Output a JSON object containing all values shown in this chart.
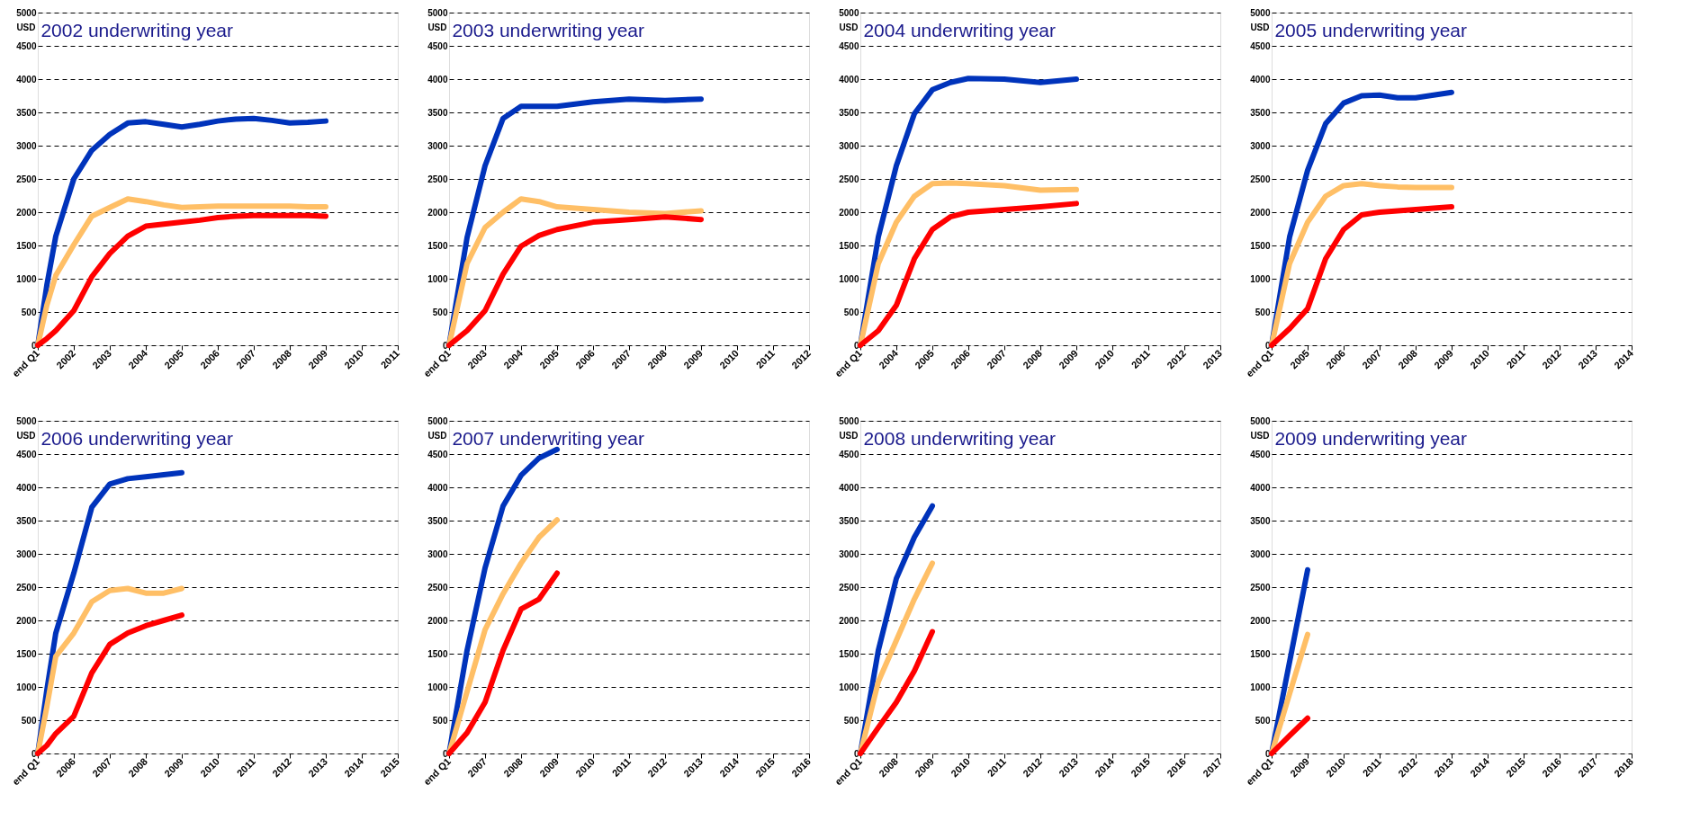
{
  "chart_data": [
    {
      "type": "line",
      "title": "2002 underwriting year",
      "ylabel": "USD",
      "x": [
        2001,
        2001.25,
        2001.5,
        2002,
        2002.5,
        2003,
        2003.5,
        2004,
        2004.5,
        2005,
        2005.5,
        2006,
        2006.5,
        2007,
        2007.5,
        2008,
        2008.5,
        2009
      ],
      "xlim": [
        2001,
        2011
      ],
      "ylim": [
        0,
        5000
      ],
      "grid": "y",
      "line_style": "solid",
      "marker": "none",
      "xticks": [
        {
          "value": 2001,
          "label": "end Q1"
        },
        2002,
        2003,
        2004,
        2005,
        2006,
        2007,
        2008,
        2009,
        2010,
        2011
      ],
      "yticks": [
        0,
        500,
        1000,
        1500,
        2000,
        2500,
        3000,
        3500,
        4000,
        4500,
        5000
      ],
      "series": [
        {
          "color": "#0033bb",
          "values": [
            0,
            900,
            1640,
            2500,
            2930,
            3170,
            3340,
            3360,
            3320,
            3280,
            3320,
            3370,
            3400,
            3410,
            3380,
            3340,
            3350,
            3370
          ]
        },
        {
          "color": "#ffbf66",
          "values": [
            0,
            600,
            1050,
            1510,
            1940,
            2070,
            2200,
            2160,
            2110,
            2070,
            2080,
            2090,
            2090,
            2090,
            2090,
            2090,
            2080,
            2080
          ]
        },
        {
          "color": "#ff0000",
          "values": [
            0,
            100,
            220,
            520,
            1030,
            1380,
            1640,
            1790,
            1820,
            1850,
            1880,
            1920,
            1940,
            1950,
            1950,
            1950,
            1950,
            1940
          ]
        }
      ]
    },
    {
      "type": "line",
      "title": "2003 underwriting year",
      "ylabel": "USD",
      "x": [
        2002,
        2002.5,
        2003,
        2003.5,
        2004,
        2004.5,
        2005,
        2006,
        2007,
        2008,
        2009
      ],
      "xlim": [
        2002,
        2012
      ],
      "ylim": [
        0,
        5000
      ],
      "grid": "y",
      "line_style": "solid",
      "marker": "none",
      "xticks": [
        {
          "value": 2002,
          "label": "end Q1"
        },
        2003,
        2004,
        2005,
        2006,
        2007,
        2008,
        2009,
        2010,
        2011,
        2012
      ],
      "yticks": [
        0,
        500,
        1000,
        1500,
        2000,
        2500,
        3000,
        3500,
        4000,
        4500,
        5000
      ],
      "series": [
        {
          "color": "#0033bb",
          "values": [
            0,
            1620,
            2700,
            3410,
            3590,
            3590,
            3590,
            3660,
            3700,
            3680,
            3700
          ]
        },
        {
          "color": "#ffbf66",
          "values": [
            0,
            1230,
            1770,
            2000,
            2200,
            2160,
            2080,
            2040,
            2000,
            1980,
            2020
          ]
        },
        {
          "color": "#ff0000",
          "values": [
            0,
            220,
            520,
            1070,
            1490,
            1650,
            1740,
            1850,
            1890,
            1930,
            1890
          ]
        }
      ]
    },
    {
      "type": "line",
      "title": "2004 underwriting year",
      "ylabel": "USD",
      "x": [
        2003,
        2003.5,
        2004,
        2004.5,
        2005,
        2005.5,
        2006,
        2007,
        2008,
        2009
      ],
      "xlim": [
        2003,
        2013
      ],
      "ylim": [
        0,
        5000
      ],
      "grid": "y",
      "line_style": "solid",
      "marker": "none",
      "xticks": [
        {
          "value": 2003,
          "label": "end Q1"
        },
        2004,
        2005,
        2006,
        2007,
        2008,
        2009,
        2010,
        2011,
        2012,
        2013
      ],
      "yticks": [
        0,
        500,
        1000,
        1500,
        2000,
        2500,
        3000,
        3500,
        4000,
        4500,
        5000
      ],
      "series": [
        {
          "color": "#0033bb",
          "values": [
            0,
            1630,
            2700,
            3480,
            3840,
            3950,
            4010,
            4000,
            3950,
            4000
          ]
        },
        {
          "color": "#ffbf66",
          "values": [
            0,
            1230,
            1850,
            2240,
            2430,
            2440,
            2430,
            2400,
            2330,
            2340
          ]
        },
        {
          "color": "#ff0000",
          "values": [
            0,
            220,
            600,
            1300,
            1740,
            1930,
            2000,
            2040,
            2080,
            2130
          ]
        }
      ]
    },
    {
      "type": "line",
      "title": "2005 underwriting year",
      "ylabel": "USD",
      "x": [
        2004,
        2004.5,
        2005,
        2005.5,
        2006,
        2006.5,
        2007,
        2007.5,
        2008,
        2009
      ],
      "xlim": [
        2004,
        2014
      ],
      "ylim": [
        0,
        5000
      ],
      "grid": "y",
      "line_style": "solid",
      "marker": "none",
      "xticks": [
        {
          "value": 2004,
          "label": "end Q1"
        },
        2005,
        2006,
        2007,
        2008,
        2009,
        2010,
        2011,
        2012,
        2013,
        2014
      ],
      "yticks": [
        0,
        500,
        1000,
        1500,
        2000,
        2500,
        3000,
        3500,
        4000,
        4500,
        5000
      ],
      "series": [
        {
          "color": "#0033bb",
          "values": [
            0,
            1630,
            2630,
            3330,
            3640,
            3750,
            3760,
            3720,
            3720,
            3800
          ]
        },
        {
          "color": "#ffbf66",
          "values": [
            0,
            1230,
            1850,
            2240,
            2400,
            2430,
            2400,
            2380,
            2370,
            2370
          ]
        },
        {
          "color": "#ff0000",
          "values": [
            0,
            250,
            550,
            1300,
            1740,
            1960,
            2000,
            2020,
            2040,
            2080
          ]
        }
      ]
    },
    {
      "type": "line",
      "title": "2006 underwriting year",
      "ylabel": "USD",
      "x": [
        2005,
        2005.25,
        2005.5,
        2006,
        2006.5,
        2007,
        2007.5,
        2008,
        2008.5,
        2009
      ],
      "xlim": [
        2005,
        2015
      ],
      "ylim": [
        0,
        5000
      ],
      "grid": "y",
      "line_style": "solid",
      "marker": "none",
      "xticks": [
        {
          "value": 2005,
          "label": "end Q1"
        },
        2006,
        2007,
        2008,
        2009,
        2010,
        2011,
        2012,
        2013,
        2014,
        2015
      ],
      "yticks": [
        0,
        500,
        1000,
        1500,
        2000,
        2500,
        3000,
        3500,
        4000,
        4500,
        5000
      ],
      "series": [
        {
          "color": "#0033bb",
          "values": [
            0,
            950,
            1810,
            2710,
            3700,
            4050,
            4130,
            4160,
            4190,
            4220
          ]
        },
        {
          "color": "#ffbf66",
          "values": [
            0,
            700,
            1460,
            1810,
            2280,
            2450,
            2480,
            2410,
            2410,
            2480
          ]
        },
        {
          "color": "#ff0000",
          "values": [
            0,
            120,
            300,
            560,
            1210,
            1640,
            1810,
            1920,
            2000,
            2080
          ]
        }
      ]
    },
    {
      "type": "line",
      "title": "2007 underwriting year",
      "ylabel": "USD",
      "x": [
        2006,
        2006.5,
        2007,
        2007.5,
        2008,
        2008.5,
        2009
      ],
      "xlim": [
        2006,
        2016
      ],
      "ylim": [
        0,
        5000
      ],
      "grid": "y",
      "line_style": "solid",
      "marker": "none",
      "xticks": [
        {
          "value": 2006,
          "label": "end Q1"
        },
        2007,
        2008,
        2009,
        2010,
        2011,
        2012,
        2013,
        2014,
        2015,
        2016
      ],
      "yticks": [
        0,
        500,
        1000,
        1500,
        2000,
        2500,
        3000,
        3500,
        4000,
        4500,
        5000
      ],
      "series": [
        {
          "color": "#0033bb",
          "values": [
            0,
            1550,
            2790,
            3720,
            4180,
            4440,
            4570
          ]
        },
        {
          "color": "#ffbf66",
          "values": [
            0,
            930,
            1860,
            2400,
            2860,
            3250,
            3510
          ]
        },
        {
          "color": "#ff0000",
          "values": [
            0,
            310,
            770,
            1550,
            2170,
            2320,
            2710
          ]
        }
      ]
    },
    {
      "type": "line",
      "title": "2008 underwriting year",
      "ylabel": "USD",
      "x": [
        2007,
        2007.5,
        2008,
        2008.5,
        2009
      ],
      "xlim": [
        2007,
        2017
      ],
      "ylim": [
        0,
        5000
      ],
      "grid": "y",
      "line_style": "solid",
      "marker": "none",
      "xticks": [
        {
          "value": 2007,
          "label": "end Q1"
        },
        2008,
        2009,
        2010,
        2011,
        2012,
        2013,
        2014,
        2015,
        2016,
        2017
      ],
      "yticks": [
        0,
        500,
        1000,
        1500,
        2000,
        2500,
        3000,
        3500,
        4000,
        4500,
        5000
      ],
      "series": [
        {
          "color": "#0033bb",
          "values": [
            0,
            1550,
            2630,
            3250,
            3720
          ]
        },
        {
          "color": "#ffbf66",
          "values": [
            0,
            1080,
            1700,
            2320,
            2860
          ]
        },
        {
          "color": "#ff0000",
          "values": [
            0,
            390,
            770,
            1240,
            1830
          ]
        }
      ]
    },
    {
      "type": "line",
      "title": "2009 underwriting year",
      "ylabel": "USD",
      "x": [
        2008,
        2008.5,
        2009
      ],
      "xlim": [
        2008,
        2018
      ],
      "ylim": [
        0,
        5000
      ],
      "grid": "y",
      "line_style": "solid",
      "marker": "none",
      "xticks": [
        {
          "value": 2008,
          "label": "end Q1"
        },
        2009,
        2010,
        2011,
        2012,
        2013,
        2014,
        2015,
        2016,
        2017,
        2018
      ],
      "yticks": [
        0,
        500,
        1000,
        1500,
        2000,
        2500,
        3000,
        3500,
        4000,
        4500,
        5000
      ],
      "series": [
        {
          "color": "#0033bb",
          "values": [
            0,
            1380,
            2760
          ]
        },
        {
          "color": "#ffbf66",
          "values": [
            0,
            900,
            1790
          ]
        },
        {
          "color": "#ff0000",
          "values": [
            0,
            270,
            530
          ]
        }
      ]
    }
  ]
}
